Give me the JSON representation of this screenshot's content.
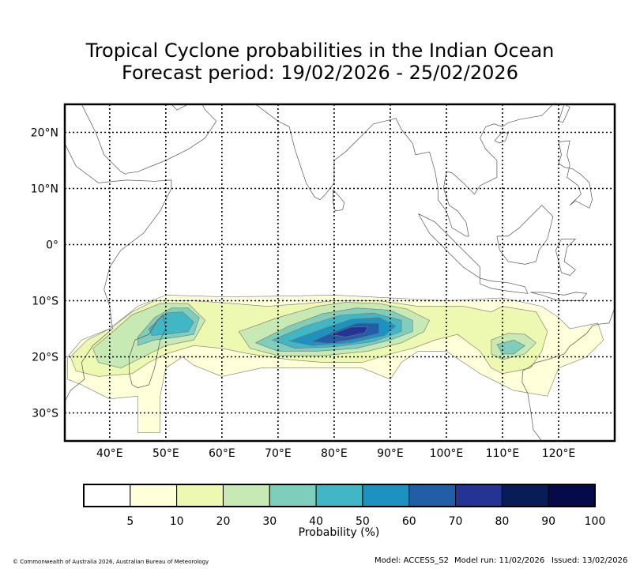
{
  "title_line1": "Tropical Cyclone probabilities in the Indian Ocean",
  "title_line2": "Forecast period: 19/02/2026 - 25/02/2026",
  "map": {
    "lon_range": [
      32,
      130
    ],
    "lat_range": [
      -35,
      25
    ],
    "lon_ticks": [
      {
        "value": 40,
        "label": "40°E"
      },
      {
        "value": 50,
        "label": "50°E"
      },
      {
        "value": 60,
        "label": "60°E"
      },
      {
        "value": 70,
        "label": "70°E"
      },
      {
        "value": 80,
        "label": "80°E"
      },
      {
        "value": 90,
        "label": "90°E"
      },
      {
        "value": 100,
        "label": "100°E"
      },
      {
        "value": 110,
        "label": "110°E"
      },
      {
        "value": 120,
        "label": "120°E"
      }
    ],
    "lat_ticks": [
      {
        "value": 20,
        "label": "20°N"
      },
      {
        "value": 10,
        "label": "10°N"
      },
      {
        "value": 0,
        "label": "0°"
      },
      {
        "value": -10,
        "label": "10°S"
      },
      {
        "value": -20,
        "label": "20°S"
      },
      {
        "value": -30,
        "label": "30°S"
      }
    ]
  },
  "probability_areas": [
    {
      "level": 5,
      "shape": [
        [
          32.5,
          -20
        ],
        [
          35,
          -17
        ],
        [
          40,
          -15
        ],
        [
          45,
          -11
        ],
        [
          50,
          -9
        ],
        [
          60,
          -9.3
        ],
        [
          70,
          -9.2
        ],
        [
          80,
          -9
        ],
        [
          90,
          -9.5
        ],
        [
          100,
          -10
        ],
        [
          110,
          -9.5
        ],
        [
          117,
          -11
        ],
        [
          120,
          -13
        ],
        [
          122,
          -15
        ],
        [
          127,
          -14
        ],
        [
          128,
          -17
        ],
        [
          125,
          -20
        ],
        [
          120,
          -22
        ],
        [
          118,
          -27
        ],
        [
          112,
          -26
        ],
        [
          106,
          -23
        ],
        [
          100,
          -19
        ],
        [
          95,
          -19
        ],
        [
          92,
          -21
        ],
        [
          90,
          -24
        ],
        [
          85,
          -22
        ],
        [
          75,
          -22
        ],
        [
          67,
          -22
        ],
        [
          60,
          -23.5
        ],
        [
          55,
          -21.5
        ],
        [
          53,
          -20
        ],
        [
          50,
          -22
        ],
        [
          49,
          -27
        ],
        [
          49,
          -33.5
        ],
        [
          45,
          -33.5
        ],
        [
          45,
          -27
        ],
        [
          40,
          -27.5
        ],
        [
          35,
          -25
        ],
        [
          32.5,
          -24
        ]
      ]
    },
    {
      "level": 10,
      "shape": [
        [
          33,
          -20
        ],
        [
          36,
          -17
        ],
        [
          40,
          -15
        ],
        [
          44,
          -12
        ],
        [
          48,
          -10
        ],
        [
          55,
          -10
        ],
        [
          62,
          -10.5
        ],
        [
          68,
          -11
        ],
        [
          75,
          -10.5
        ],
        [
          80,
          -10
        ],
        [
          88,
          -10
        ],
        [
          95,
          -11
        ],
        [
          103,
          -11
        ],
        [
          108,
          -12
        ],
        [
          110,
          -11
        ],
        [
          116,
          -12
        ],
        [
          118,
          -15.5
        ],
        [
          117,
          -19
        ],
        [
          115,
          -22
        ],
        [
          110,
          -23
        ],
        [
          108,
          -22
        ],
        [
          106,
          -19
        ],
        [
          102,
          -16
        ],
        [
          98,
          -17
        ],
        [
          94,
          -18.5
        ],
        [
          90,
          -19.5
        ],
        [
          85,
          -21
        ],
        [
          78,
          -21
        ],
        [
          72,
          -20.5
        ],
        [
          65,
          -19.5
        ],
        [
          60,
          -18.5
        ],
        [
          55,
          -18
        ],
        [
          50,
          -19.5
        ],
        [
          47,
          -21
        ],
        [
          44,
          -23
        ],
        [
          38,
          -23.5
        ],
        [
          34,
          -22.5
        ]
      ]
    },
    {
      "level": 20,
      "shape": [
        [
          37,
          -18.5
        ],
        [
          40,
          -16
        ],
        [
          44,
          -12.5
        ],
        [
          49,
          -10.5
        ],
        [
          54,
          -10.5
        ],
        [
          57,
          -13.5
        ],
        [
          55,
          -17
        ],
        [
          50,
          -18
        ],
        [
          46,
          -20
        ],
        [
          42,
          -22
        ],
        [
          38,
          -21
        ]
      ]
    },
    {
      "level": 20,
      "shape": [
        [
          63,
          -15.5
        ],
        [
          70,
          -13
        ],
        [
          77,
          -11
        ],
        [
          82,
          -10.3
        ],
        [
          88,
          -10.5
        ],
        [
          93,
          -11.5
        ],
        [
          97,
          -13.5
        ],
        [
          96,
          -15.5
        ],
        [
          92,
          -17.5
        ],
        [
          86,
          -19
        ],
        [
          78,
          -19.8
        ],
        [
          70,
          -19.8
        ],
        [
          65,
          -18.5
        ]
      ]
    },
    {
      "level": 20,
      "shape": [
        [
          108,
          -17
        ],
        [
          111,
          -15.8
        ],
        [
          114,
          -16
        ],
        [
          116,
          -17.5
        ],
        [
          114,
          -19.5
        ],
        [
          110,
          -20.5
        ],
        [
          108,
          -19.5
        ]
      ]
    },
    {
      "level": 30,
      "shape": [
        [
          45,
          -16.5
        ],
        [
          48,
          -13
        ],
        [
          51,
          -11.3
        ],
        [
          54,
          -11.3
        ],
        [
          56,
          -13
        ],
        [
          55,
          -16
        ],
        [
          52,
          -16.5
        ],
        [
          48,
          -17
        ],
        [
          45,
          -18
        ]
      ]
    },
    {
      "level": 30,
      "shape": [
        [
          66,
          -17.5
        ],
        [
          72,
          -14.5
        ],
        [
          78,
          -12.3
        ],
        [
          84,
          -11.3
        ],
        [
          90,
          -11.7
        ],
        [
          94,
          -13.5
        ],
        [
          94,
          -15.5
        ],
        [
          90,
          -17
        ],
        [
          84,
          -18.5
        ],
        [
          77,
          -19
        ],
        [
          70,
          -19
        ]
      ]
    },
    {
      "level": 30,
      "shape": [
        [
          109,
          -17.8
        ],
        [
          112,
          -17
        ],
        [
          114,
          -18
        ],
        [
          112,
          -19.5
        ],
        [
          110,
          -19.5
        ]
      ]
    },
    {
      "level": 40,
      "shape": [
        [
          47,
          -15
        ],
        [
          50,
          -12.2
        ],
        [
          53,
          -12
        ],
        [
          55,
          -13.8
        ],
        [
          54,
          -15.5
        ],
        [
          50,
          -16
        ],
        [
          47.5,
          -16.2
        ]
      ]
    },
    {
      "level": 40,
      "shape": [
        [
          69,
          -17
        ],
        [
          75,
          -14.5
        ],
        [
          81,
          -12.6
        ],
        [
          87,
          -12.2
        ],
        [
          92,
          -13.5
        ],
        [
          92,
          -15.5
        ],
        [
          87,
          -17.3
        ],
        [
          80,
          -18.2
        ],
        [
          73,
          -18.5
        ]
      ]
    },
    {
      "level": 50,
      "shape": [
        [
          72,
          -17.2
        ],
        [
          78,
          -15
        ],
        [
          83,
          -13.3
        ],
        [
          88,
          -13
        ],
        [
          91,
          -14.5
        ],
        [
          89,
          -16.2
        ],
        [
          83,
          -17.5
        ],
        [
          76,
          -18
        ]
      ]
    },
    {
      "level": 60,
      "shape": [
        [
          76,
          -17.3
        ],
        [
          80,
          -15.5
        ],
        [
          84,
          -14
        ],
        [
          88,
          -14
        ],
        [
          88,
          -15.8
        ],
        [
          84,
          -16.8
        ],
        [
          79,
          -17.6
        ]
      ]
    },
    {
      "level": 70,
      "shape": [
        [
          79.5,
          -16
        ],
        [
          83,
          -14.7
        ],
        [
          86,
          -14.6
        ],
        [
          85.5,
          -15.7
        ],
        [
          82,
          -16.5
        ]
      ]
    }
  ],
  "colorbar": {
    "label": "Probability (%)",
    "levels": [
      {
        "color": "#ffffff",
        "label": ""
      },
      {
        "color": "#ffffd9",
        "label": "5"
      },
      {
        "color": "#edf8b1",
        "label": "10"
      },
      {
        "color": "#c7e9b4",
        "label": "20"
      },
      {
        "color": "#7fcdbb",
        "label": "30"
      },
      {
        "color": "#41b6c4",
        "label": "40"
      },
      {
        "color": "#1d91c0",
        "label": "50"
      },
      {
        "color": "#225ea8",
        "label": "60"
      },
      {
        "color": "#253494",
        "label": "70"
      },
      {
        "color": "#081d58",
        "label": "80"
      },
      {
        "color": "#040a4a",
        "label": "90"
      }
    ],
    "top_label": "100"
  },
  "footer": {
    "copyright": "© Commonwealth of Australia 2026, Australian Bureau of Meteorology",
    "model": "Model: ACCESS_S2",
    "model_run": "Model run: 11/02/2026",
    "issued": "Issued: 13/02/2026"
  }
}
